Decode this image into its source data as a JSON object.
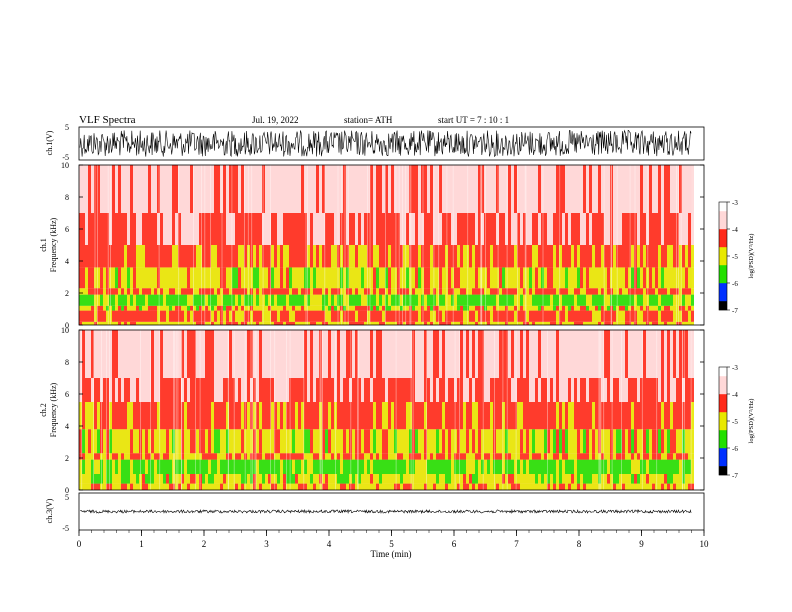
{
  "header": {
    "title": "VLF  Spectra",
    "date": "Jul.  19,  2022",
    "station": "station= ATH",
    "start_ut": "start  UT  =   7  : 10 : 1"
  },
  "colors": {
    "red": "#ff2a1a",
    "pale": "#ffd8d8",
    "yellow": "#e8e800",
    "green": "#22e000",
    "blue": "#0030ff",
    "black": "#000000"
  },
  "chart_data": [
    {
      "type": "line",
      "name": "ch1",
      "ylabel": "ch.1(V)",
      "ylim": [
        -5,
        5
      ],
      "yticks": [
        "5",
        "-5"
      ],
      "x_range": [
        0,
        9.8
      ],
      "amplitude_envelope": [
        -4,
        4
      ],
      "description_values": {
        "center": 0
      }
    },
    {
      "type": "heatmap",
      "name": "ch1-spectrogram",
      "ylabel": "ch.1\nFrequency (kHz)",
      "ylabel_lines": [
        "ch.1",
        "Frequency (kHz)"
      ],
      "ylim": [
        0,
        10
      ],
      "yticks": [
        "0",
        "2",
        "4",
        "6",
        "8",
        "10"
      ],
      "x_range": [
        0,
        9.8
      ],
      "bands": [
        {
          "f0": 0.0,
          "f1": 0.2,
          "level": -4.2
        },
        {
          "f0": 0.2,
          "f1": 0.9,
          "level": -3.9
        },
        {
          "f0": 0.9,
          "f1": 1.2,
          "level": -4.3
        },
        {
          "f0": 1.2,
          "f1": 1.9,
          "level": -4.8
        },
        {
          "f0": 1.9,
          "f1": 2.3,
          "level": -4.0
        },
        {
          "f0": 2.3,
          "f1": 3.6,
          "level": -4.3
        },
        {
          "f0": 3.6,
          "f1": 5.0,
          "level": -3.9
        },
        {
          "f0": 5.0,
          "f1": 7.0,
          "level": -3.6
        },
        {
          "f0": 7.0,
          "f1": 10.0,
          "level": -3.3
        }
      ],
      "colorbar": {
        "label": "log(PSD)(V²/Hz)",
        "ticks": [
          "-3",
          "-4",
          "-5",
          "-6",
          "-7"
        ],
        "range": [
          -7,
          -3
        ]
      }
    },
    {
      "type": "heatmap",
      "name": "ch2-spectrogram",
      "ylabel": "ch.2\nFrequency (kHz)",
      "ylabel_lines": [
        "ch.2",
        "Frequency (kHz)"
      ],
      "ylim": [
        0,
        10
      ],
      "yticks": [
        "0",
        "2",
        "4",
        "6",
        "8",
        "10"
      ],
      "x_range": [
        0,
        9.8
      ],
      "bands": [
        {
          "f0": 0.0,
          "f1": 0.4,
          "level": -4.2
        },
        {
          "f0": 0.4,
          "f1": 1.0,
          "level": -4.4
        },
        {
          "f0": 1.0,
          "f1": 1.9,
          "level": -4.8
        },
        {
          "f0": 1.9,
          "f1": 2.3,
          "level": -4.0
        },
        {
          "f0": 2.3,
          "f1": 3.8,
          "level": -4.3
        },
        {
          "f0": 3.8,
          "f1": 5.5,
          "level": -3.9
        },
        {
          "f0": 5.5,
          "f1": 7.0,
          "level": -3.6
        },
        {
          "f0": 7.0,
          "f1": 10.0,
          "level": -3.3
        }
      ],
      "colorbar": {
        "label": "log(PSD)(V²/Hz)",
        "ticks": [
          "-3",
          "-4",
          "-5",
          "-6",
          "-7"
        ],
        "range": [
          -7,
          -3
        ]
      }
    },
    {
      "type": "line",
      "name": "ch3",
      "ylabel": "ch.3(V)",
      "ylim": [
        -5,
        5
      ],
      "yticks": [
        "5",
        "-5"
      ],
      "x_range": [
        0,
        9.8
      ],
      "amplitude_envelope": [
        -0.4,
        0.4
      ],
      "description_values": {
        "center": 0
      }
    }
  ],
  "x_axis": {
    "label": "Time  (min)",
    "ticks": [
      "0",
      "1",
      "2",
      "3",
      "4",
      "5",
      "6",
      "7",
      "8",
      "9",
      "10"
    ],
    "xlim": [
      0,
      10
    ]
  }
}
